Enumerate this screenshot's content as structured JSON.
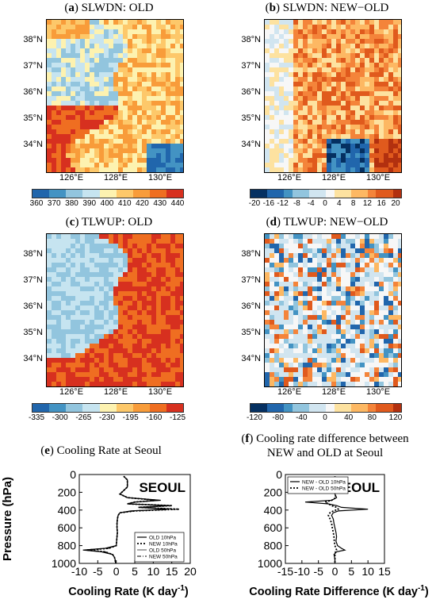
{
  "panels": [
    {
      "id": "a",
      "letter": "a",
      "title": "SLWDN: OLD",
      "lats": [
        "38°N",
        "37°N",
        "36°N",
        "35°N",
        "34°N"
      ],
      "lons": [
        "126°E",
        "128°E",
        "130°E"
      ],
      "colorbar": [
        "360",
        "370",
        "380",
        "390",
        "400",
        "410",
        "420",
        "430",
        "440"
      ],
      "cmap": "seq"
    },
    {
      "id": "b",
      "letter": "b",
      "title": "SLWDN: NEW−OLD",
      "lats": [
        "38°N",
        "37°N",
        "36°N",
        "35°N",
        "34°N"
      ],
      "lons": [
        "126°E",
        "128°E",
        "130°E"
      ],
      "colorbar": [
        "-20",
        "-16",
        "-12",
        "-8",
        "-4",
        "0",
        "4",
        "8",
        "12",
        "16",
        "20"
      ],
      "cmap": "div"
    },
    {
      "id": "c",
      "letter": "c",
      "title": "TLWUP: OLD",
      "lats": [
        "38°N",
        "37°N",
        "36°N",
        "35°N",
        "34°N"
      ],
      "lons": [
        "126°E",
        "128°E",
        "130°E"
      ],
      "colorbar": [
        "-335",
        "-300",
        "-265",
        "-230",
        "-195",
        "-160",
        "-125"
      ],
      "cmap": "seq"
    },
    {
      "id": "d",
      "letter": "d",
      "title": "TLWUP: NEW−OLD",
      "lats": [
        "38°N",
        "37°N",
        "36°N",
        "35°N",
        "34°N"
      ],
      "lons": [
        "126°E",
        "128°E",
        "130°E"
      ],
      "colorbar": [
        "-120",
        "-80",
        "-40",
        "0",
        "40",
        "80",
        "120"
      ],
      "cmap": "div"
    }
  ],
  "colors": {
    "seq": [
      "#2166ac",
      "#4393c3",
      "#92c5de",
      "#c6e4f0",
      "#fdf2b0",
      "#fdc86a",
      "#f89c3a",
      "#ef6e21",
      "#d7301f"
    ],
    "div": [
      "#053061",
      "#2166ac",
      "#4393c3",
      "#92c5de",
      "#d1e5f0",
      "#f7f7f7",
      "#fde2a0",
      "#fdb863",
      "#f4843a",
      "#e05a1d",
      "#b2300f"
    ]
  },
  "chart_data": [
    {
      "type": "line",
      "letter": "e",
      "title": "Cooling Rate at Seoul",
      "station": "SEOUL",
      "xlabel": "Cooling Rate (K day",
      "xlabel_sup": "-1",
      "xlabel_end": ")",
      "ylabel": "Pressure (hPa)",
      "xlim": [
        -10,
        20
      ],
      "ylim": [
        1000,
        0
      ],
      "xticks": [
        "-10",
        "-5",
        "0",
        "5",
        "10",
        "15",
        "20"
      ],
      "xtick_values": [
        -10,
        -5,
        0,
        5,
        10,
        15,
        20
      ],
      "yticks": [
        "0",
        "200",
        "400",
        "600",
        "800",
        "1000"
      ],
      "ytick_values": [
        0,
        200,
        400,
        600,
        800,
        1000
      ],
      "pressure": [
        20,
        60,
        100,
        140,
        180,
        220,
        260,
        290,
        310,
        330,
        350,
        370,
        390,
        410,
        430,
        460,
        500,
        550,
        600,
        650,
        700,
        750,
        800,
        830,
        850,
        870,
        900,
        930,
        960,
        1000
      ],
      "series": [
        {
          "name": "OLD 10hPa",
          "style": "solid",
          "values": [
            2,
            3,
            3,
            3,
            2,
            1,
            3,
            12,
            5,
            3,
            15,
            6,
            14,
            4,
            1,
            0.5,
            0.3,
            0.2,
            0.2,
            0.3,
            0.2,
            0.1,
            0,
            -3,
            -9,
            -4,
            -1,
            -0.5,
            -0.3,
            -0.2
          ]
        },
        {
          "name": "NEW 10hPa",
          "style": "dotted",
          "values": [
            2,
            3,
            3,
            3,
            2,
            1,
            3,
            11,
            5,
            3,
            15,
            6,
            17,
            5,
            1,
            0.5,
            0.3,
            0.2,
            0.2,
            0.3,
            0.2,
            0.1,
            0,
            -2,
            -8,
            -3,
            -1,
            -0.5,
            -0.3,
            -0.2
          ]
        },
        {
          "name": "OLD 50hPa",
          "style": "thin",
          "values": [
            2,
            3,
            3,
            3,
            2,
            1,
            3,
            12,
            5,
            3,
            15,
            6,
            14,
            4,
            1,
            0.5,
            0.3,
            0.2,
            0.2,
            0.3,
            0.2,
            0.1,
            0,
            -3,
            -9,
            -4,
            -1,
            -0.5,
            -0.3,
            -0.2
          ]
        },
        {
          "name": "NEW 50hPa",
          "style": "dashdot",
          "values": [
            2,
            3,
            3,
            3,
            2,
            1,
            3,
            11,
            5,
            3,
            14,
            6,
            17,
            5,
            1,
            0.5,
            0.3,
            0.2,
            0.2,
            0.3,
            0.2,
            0.1,
            0,
            -2,
            -8,
            -3,
            -1,
            -0.5,
            -0.3,
            -0.2
          ]
        }
      ]
    },
    {
      "type": "line",
      "letter": "f",
      "title_line1": "Cooling rate difference between",
      "title_line2": "NEW and OLD at Seoul",
      "station": "SEOUL",
      "xlabel": "Cooling Rate Difference (K day",
      "xlabel_sup": "-1",
      "xlabel_end": ")",
      "ylabel": "Pressure (hPa)",
      "xlim": [
        -15,
        15
      ],
      "ylim": [
        1000,
        0
      ],
      "xticks": [
        "-15",
        "-10",
        "-5",
        "0",
        "5",
        "10",
        "15"
      ],
      "xtick_values": [
        -15,
        -10,
        -5,
        0,
        5,
        10,
        15
      ],
      "yticks": [
        "0",
        "200",
        "400",
        "600",
        "800",
        "1000"
      ],
      "ytick_values": [
        0,
        200,
        400,
        600,
        800,
        1000
      ],
      "pressure": [
        20,
        80,
        150,
        220,
        260,
        290,
        310,
        330,
        350,
        370,
        390,
        410,
        430,
        460,
        500,
        550,
        600,
        650,
        700,
        750,
        800,
        830,
        850,
        870,
        900,
        950,
        1000
      ],
      "series": [
        {
          "name": "NEW - OLD 10hPa",
          "style": "solid",
          "values": [
            0,
            0,
            0,
            0,
            0.5,
            -1,
            -9,
            -2,
            0.5,
            2,
            10,
            1,
            -0.5,
            -1,
            -0.5,
            -0.3,
            0,
            0.3,
            0.5,
            0.3,
            0.8,
            2,
            3,
            0.5,
            -0.3,
            0,
            0
          ]
        },
        {
          "name": "NEW - OLD 50hPa",
          "style": "dotted",
          "values": [
            0,
            0,
            0,
            0,
            0.3,
            -1,
            -3,
            -2,
            -1,
            0.5,
            1,
            -0.5,
            -1.5,
            -2,
            -1.5,
            -1,
            -0.8,
            -0.5,
            -0.3,
            -0.2,
            0,
            0.3,
            0.5,
            0.2,
            0,
            0,
            0
          ]
        }
      ]
    }
  ]
}
